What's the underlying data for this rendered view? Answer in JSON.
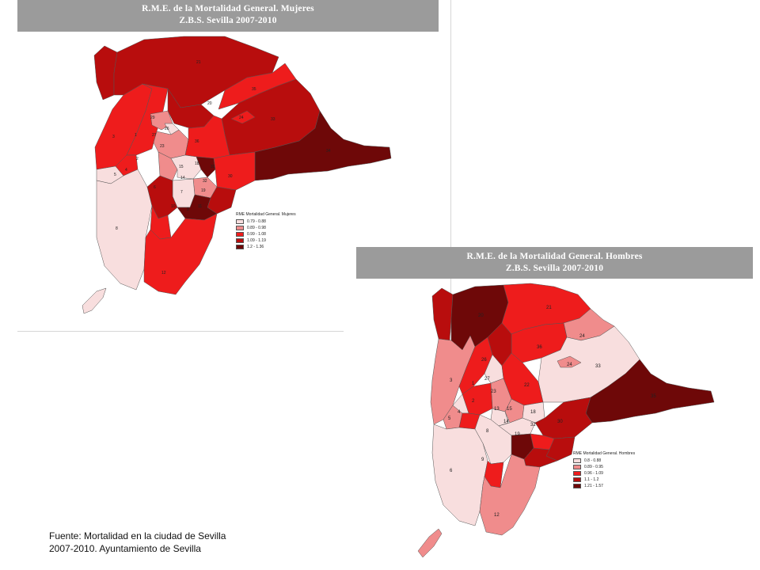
{
  "top_map": {
    "title_line1": "R.M.E. de la Mortalidad General. Mujeres",
    "title_line2": "Z.B.S. Sevilla 2007-2010",
    "legend_title": "RME Mortalidad General. Mujeres",
    "legend": [
      {
        "range": "0.79 - 0.88",
        "color": "#f8dede"
      },
      {
        "range": "0.89 - 0.98",
        "color": "#f08c8c"
      },
      {
        "range": "0.99 - 1.08",
        "color": "#ee1c1c"
      },
      {
        "range": "1.09 - 1.19",
        "color": "#b80d0d"
      },
      {
        "range": "1.2 - 1.36",
        "color": "#6e0808"
      }
    ],
    "zone_labels": [
      "29",
      "1",
      "27",
      "2",
      "23",
      "3",
      "5",
      "4",
      "26",
      "6",
      "15",
      "18",
      "14",
      "19",
      "7",
      "8",
      "32",
      "31",
      "30",
      "33",
      "34",
      "35",
      "36",
      "24",
      "21",
      "20",
      "10",
      "12",
      "11",
      "9"
    ]
  },
  "bottom_map": {
    "title_line1": "R.M.E. de la Mortalidad General. Hombres",
    "title_line2": "Z.B.S. Sevilla 2007-2010",
    "legend_title": "RME Mortalidad General. Hombres",
    "legend": [
      {
        "range": "0.8 - 0.88",
        "color": "#f8dede"
      },
      {
        "range": "0.89 - 0.95",
        "color": "#f08c8c"
      },
      {
        "range": "0.96 - 1.09",
        "color": "#ee1c1c"
      },
      {
        "range": "1.1 - 1.2",
        "color": "#b80d0d"
      },
      {
        "range": "1.21 - 1.57",
        "color": "#6e0808"
      }
    ],
    "zone_labels": [
      "20",
      "21",
      "24",
      "24",
      "33",
      "36",
      "26",
      "3",
      "1",
      "27",
      "23",
      "22",
      "2",
      "5",
      "4",
      "15",
      "13",
      "18",
      "14",
      "8",
      "19",
      "32",
      "30",
      "6",
      "9",
      "12",
      "35"
    ]
  },
  "source": {
    "line1": "Fuente: Mortalidad en la ciudad de Sevilla",
    "line2": "2007-2010.  Ayuntamiento de Sevilla"
  }
}
